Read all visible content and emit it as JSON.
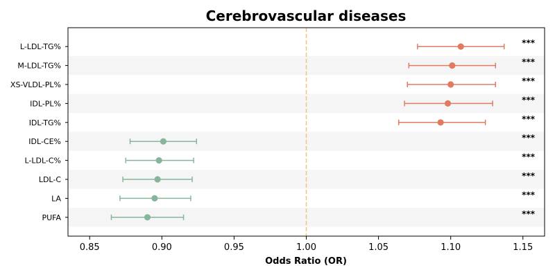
{
  "chart_data": {
    "type": "forest",
    "title": "Cerebrovascular diseases",
    "xlabel": "Odds Ratio (OR)",
    "ylabel": "",
    "xlim": [
      0.835,
      1.165
    ],
    "xticks": [
      0.85,
      0.9,
      0.95,
      1.0,
      1.05,
      1.1,
      1.15
    ],
    "xtick_labels": [
      "0.85",
      "0.90",
      "0.95",
      "1.00",
      "1.05",
      "1.10",
      "1.15"
    ],
    "reference_line": 1.0,
    "colors": {
      "positive": "#e07b61",
      "negative": "#86b59c",
      "reference": "#f3c57a",
      "stripe": "#f5f5f5"
    },
    "rows": [
      {
        "label": "L-LDL-TG%",
        "or": 1.107,
        "lower": 1.077,
        "upper": 1.137,
        "sig": "***",
        "group": "positive"
      },
      {
        "label": "M-LDL-TG%",
        "or": 1.101,
        "lower": 1.071,
        "upper": 1.131,
        "sig": "***",
        "group": "positive"
      },
      {
        "label": "XS-VLDL-PL%",
        "or": 1.1,
        "lower": 1.07,
        "upper": 1.131,
        "sig": "***",
        "group": "positive"
      },
      {
        "label": "IDL-PL%",
        "or": 1.098,
        "lower": 1.068,
        "upper": 1.129,
        "sig": "***",
        "group": "positive"
      },
      {
        "label": "IDL-TG%",
        "or": 1.093,
        "lower": 1.064,
        "upper": 1.124,
        "sig": "***",
        "group": "positive"
      },
      {
        "label": "IDL-CE%",
        "or": 0.901,
        "lower": 0.878,
        "upper": 0.924,
        "sig": "***",
        "group": "negative"
      },
      {
        "label": "L-LDL-C%",
        "or": 0.898,
        "lower": 0.875,
        "upper": 0.922,
        "sig": "***",
        "group": "negative"
      },
      {
        "label": "LDL-C",
        "or": 0.897,
        "lower": 0.873,
        "upper": 0.921,
        "sig": "***",
        "group": "negative"
      },
      {
        "label": "LA",
        "or": 0.895,
        "lower": 0.871,
        "upper": 0.92,
        "sig": "***",
        "group": "negative"
      },
      {
        "label": "PUFA",
        "or": 0.89,
        "lower": 0.865,
        "upper": 0.915,
        "sig": "***",
        "group": "negative"
      }
    ]
  }
}
